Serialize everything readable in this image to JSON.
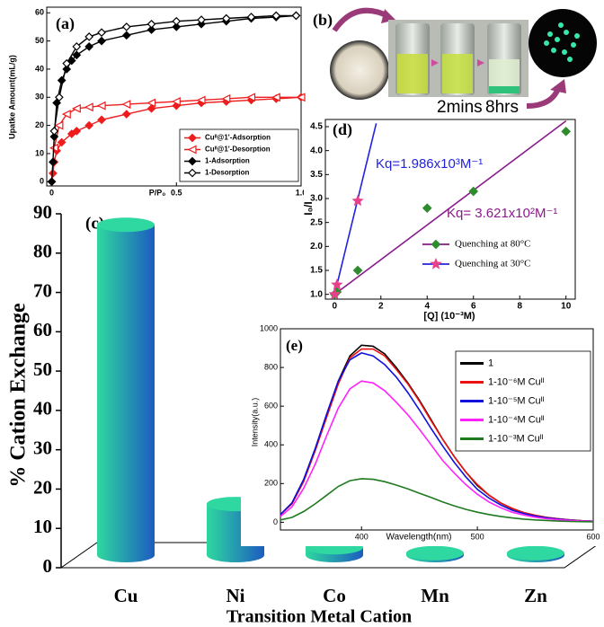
{
  "photo": {
    "panel_label": "(b)",
    "labels": [
      "2mins",
      "8hrs"
    ]
  },
  "chart_data": [
    {
      "type": "line",
      "panel_label": "(a)",
      "xlabel": "P/P₀",
      "ylabel": "Upatke Amount(mL/g)",
      "xlim": [
        -0.02,
        1.0
      ],
      "ylim": [
        -1.5,
        62
      ],
      "xticks": [
        0,
        0.5,
        {
          "value": 1,
          "label": "1.0"
        }
      ],
      "yticks": [
        0,
        10,
        20,
        30,
        40,
        50,
        60
      ],
      "legend": "lower right",
      "series": [
        {
          "name": "Cuᴵᴵ@1'-Adsorption",
          "color": "#ee1c1c",
          "marker": "diamond",
          "x": [
            0,
            0.005,
            0.01,
            0.02,
            0.04,
            0.08,
            0.1,
            0.15,
            0.2,
            0.3,
            0.4,
            0.5,
            0.6,
            0.7,
            0.8,
            0.9,
            1.0
          ],
          "values": [
            0,
            3,
            7,
            11,
            14,
            17,
            18,
            20,
            22,
            24,
            26,
            27,
            28,
            28.5,
            29,
            29.5,
            30
          ]
        },
        {
          "name": "Cuᴵᴵ@1'-Desorption",
          "color": "#ee1c1c",
          "marker": "triangle-open",
          "x": [
            1.0,
            0.9,
            0.8,
            0.7,
            0.6,
            0.5,
            0.4,
            0.3,
            0.2,
            0.15,
            0.1,
            0.06,
            0.03,
            0.01
          ],
          "values": [
            30,
            30,
            30,
            29.5,
            29,
            28.5,
            28,
            27.5,
            27,
            26.5,
            26,
            24,
            20,
            12
          ]
        },
        {
          "name": "1-Adsorption",
          "color": "#000000",
          "marker": "diamond",
          "x": [
            0,
            0.005,
            0.01,
            0.02,
            0.04,
            0.06,
            0.08,
            0.1,
            0.15,
            0.2,
            0.3,
            0.4,
            0.5,
            0.6,
            0.7,
            0.8,
            0.9,
            0.98
          ],
          "values": [
            0,
            7,
            16,
            28,
            36,
            40,
            43,
            45,
            48,
            50,
            52,
            54,
            55,
            56,
            57,
            58,
            58.5,
            59
          ]
        },
        {
          "name": "1-Desorption",
          "color": "#000000",
          "marker": "diamond-open",
          "x": [
            0.98,
            0.9,
            0.8,
            0.7,
            0.6,
            0.5,
            0.4,
            0.3,
            0.2,
            0.15,
            0.1,
            0.06,
            0.03,
            0.01
          ],
          "values": [
            59,
            59,
            58.5,
            58,
            57.5,
            57,
            56,
            55,
            53,
            51.5,
            48,
            42,
            30,
            18
          ]
        }
      ]
    },
    {
      "type": "bar",
      "panel_label": "(c)",
      "ylabel": "% Cation Exchange",
      "xlabel": "Transition Metal Cation",
      "categories": [
        "Cu",
        "Ni",
        "Co",
        "Mn",
        "Zn"
      ],
      "values": [
        84,
        13,
        2,
        0.5,
        0.5
      ],
      "ylim": [
        0,
        90
      ],
      "yticks": [
        0,
        10,
        20,
        30,
        40,
        50,
        60,
        70,
        80,
        90
      ],
      "colors": {
        "top": "#2ed8a0",
        "bottom": "#1c5cc0"
      }
    },
    {
      "type": "scatter",
      "panel_label": "(d)",
      "xlabel": "[Q] (10⁻³M)",
      "ylabel": "I₀/I",
      "xlim": [
        -0.4,
        10.4
      ],
      "ylim": [
        0.9,
        4.65
      ],
      "xticks": [
        0,
        2,
        4,
        6,
        8,
        10
      ],
      "yticks": [
        {
          "value": 1,
          "label": "1.0"
        },
        1.5,
        {
          "value": 2,
          "label": "2.0"
        },
        2.5,
        {
          "value": 3,
          "label": "3.0"
        },
        3.5,
        {
          "value": 4,
          "label": "4.0"
        },
        4.5
      ],
      "annotations": [
        "Kq=1.986x10³M⁻¹",
        "Kq= 3.621x10²M⁻¹"
      ],
      "series": [
        {
          "name": "Quenching at 80°C",
          "color": "#2e8b2e",
          "line_color": "#8b1a8b",
          "marker": "diamond",
          "x": [
            0,
            0.1,
            1,
            4,
            6,
            10
          ],
          "values": [
            1.0,
            1.05,
            1.5,
            2.8,
            3.15,
            4.4
          ],
          "fit": {
            "x": [
              0,
              10
            ],
            "values": [
              1,
              4.62
            ]
          }
        },
        {
          "name": "Quenching at 30°C",
          "color": "#e8408a",
          "line_color": "#2323dd",
          "marker": "star",
          "x": [
            0,
            0.1,
            1
          ],
          "values": [
            1.0,
            1.2,
            2.95
          ],
          "fit": {
            "x": [
              0,
              1.8
            ],
            "values": [
              1,
              4.57
            ]
          }
        }
      ]
    },
    {
      "type": "line",
      "panel_label": "(e)",
      "xlabel": "Wavelength(nm)",
      "ylabel": "Intensity(a.u.)",
      "xlim": [
        330,
        600
      ],
      "ylim": [
        -40,
        1000
      ],
      "xticks": [
        400,
        500,
        600
      ],
      "yticks": [
        0,
        200,
        400,
        600,
        800,
        1000
      ],
      "legend": "upper right",
      "x": [
        330,
        340,
        350,
        360,
        370,
        380,
        390,
        400,
        410,
        420,
        430,
        440,
        450,
        460,
        470,
        480,
        490,
        500,
        510,
        520,
        530,
        540,
        550,
        560,
        570,
        580,
        590,
        600
      ],
      "series": [
        {
          "name": "1",
          "color": "#000000",
          "values": [
            40,
            100,
            220,
            380,
            560,
            730,
            860,
            915,
            910,
            870,
            800,
            720,
            630,
            530,
            430,
            340,
            260,
            190,
            140,
            100,
            70,
            50,
            35,
            25,
            18,
            12,
            8,
            5
          ]
        },
        {
          "name": "1-10⁻⁶M Cuᴵᴵ",
          "color": "#ee1111",
          "values": [
            40,
            95,
            210,
            370,
            545,
            715,
            850,
            895,
            895,
            860,
            790,
            715,
            625,
            525,
            430,
            340,
            260,
            195,
            140,
            100,
            72,
            50,
            36,
            25,
            18,
            12,
            8,
            5
          ]
        },
        {
          "name": "1-10⁻⁵M Cuᴵᴵ",
          "color": "#1111dd",
          "values": [
            40,
            100,
            220,
            380,
            560,
            730,
            840,
            875,
            860,
            815,
            750,
            670,
            580,
            485,
            395,
            310,
            235,
            170,
            125,
            90,
            62,
            45,
            32,
            22,
            16,
            11,
            7,
            5
          ]
        },
        {
          "name": "1-10⁻⁴M Cuᴵᴵ",
          "color": "#ff22ff",
          "values": [
            30,
            80,
            175,
            300,
            450,
            590,
            690,
            730,
            720,
            680,
            620,
            555,
            480,
            400,
            320,
            255,
            195,
            145,
            105,
            75,
            52,
            37,
            26,
            18,
            13,
            9,
            6,
            4
          ]
        },
        {
          "name": "1-10⁻³M Cuᴵᴵ",
          "color": "#1f7a1f",
          "values": [
            12,
            25,
            55,
            95,
            140,
            185,
            215,
            225,
            222,
            210,
            192,
            172,
            150,
            128,
            105,
            85,
            67,
            52,
            40,
            30,
            22,
            16,
            12,
            9,
            6,
            4,
            3,
            2
          ]
        }
      ]
    }
  ]
}
